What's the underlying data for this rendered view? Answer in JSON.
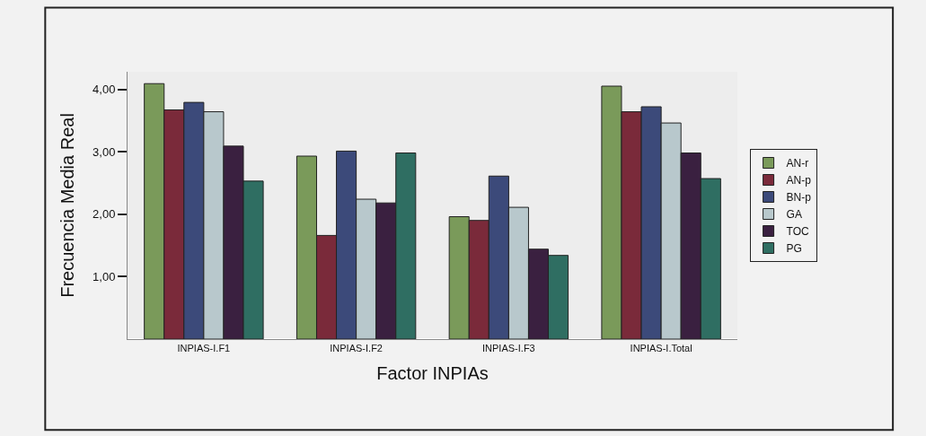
{
  "chart_data": {
    "type": "bar",
    "xlabel": "Factor INPIAs",
    "ylabel": "Frecuencia Media Real",
    "categories": [
      "INPIAS-I.F1",
      "INPIAS-I.F2",
      "INPIAS-I.F3",
      "INPIAS-I.Total"
    ],
    "series": [
      {
        "name": "AN-r",
        "color": "#7a9a5a",
        "values": [
          4.09,
          2.93,
          1.96,
          4.05
        ]
      },
      {
        "name": "AN-p",
        "color": "#7a2a3a",
        "values": [
          3.67,
          1.66,
          1.9,
          3.64
        ]
      },
      {
        "name": "BN-p",
        "color": "#3c4a7a",
        "values": [
          3.79,
          3.01,
          2.61,
          3.72
        ]
      },
      {
        "name": "GA",
        "color": "#b8c8cc",
        "values": [
          3.64,
          2.24,
          2.11,
          3.46
        ]
      },
      {
        "name": "TOC",
        "color": "#3a2040",
        "values": [
          3.09,
          2.18,
          1.44,
          2.98
        ]
      },
      {
        "name": "PG",
        "color": "#2f6e62",
        "values": [
          2.53,
          2.98,
          1.34,
          2.57
        ]
      }
    ],
    "ylim": [
      0,
      4.28
    ],
    "yticks": [
      {
        "value": 1,
        "label": "1,00"
      },
      {
        "value": 2,
        "label": "2,00"
      },
      {
        "value": 3,
        "label": "3,00"
      },
      {
        "value": 4,
        "label": "4,00"
      }
    ],
    "legend": "right",
    "grid": false
  }
}
